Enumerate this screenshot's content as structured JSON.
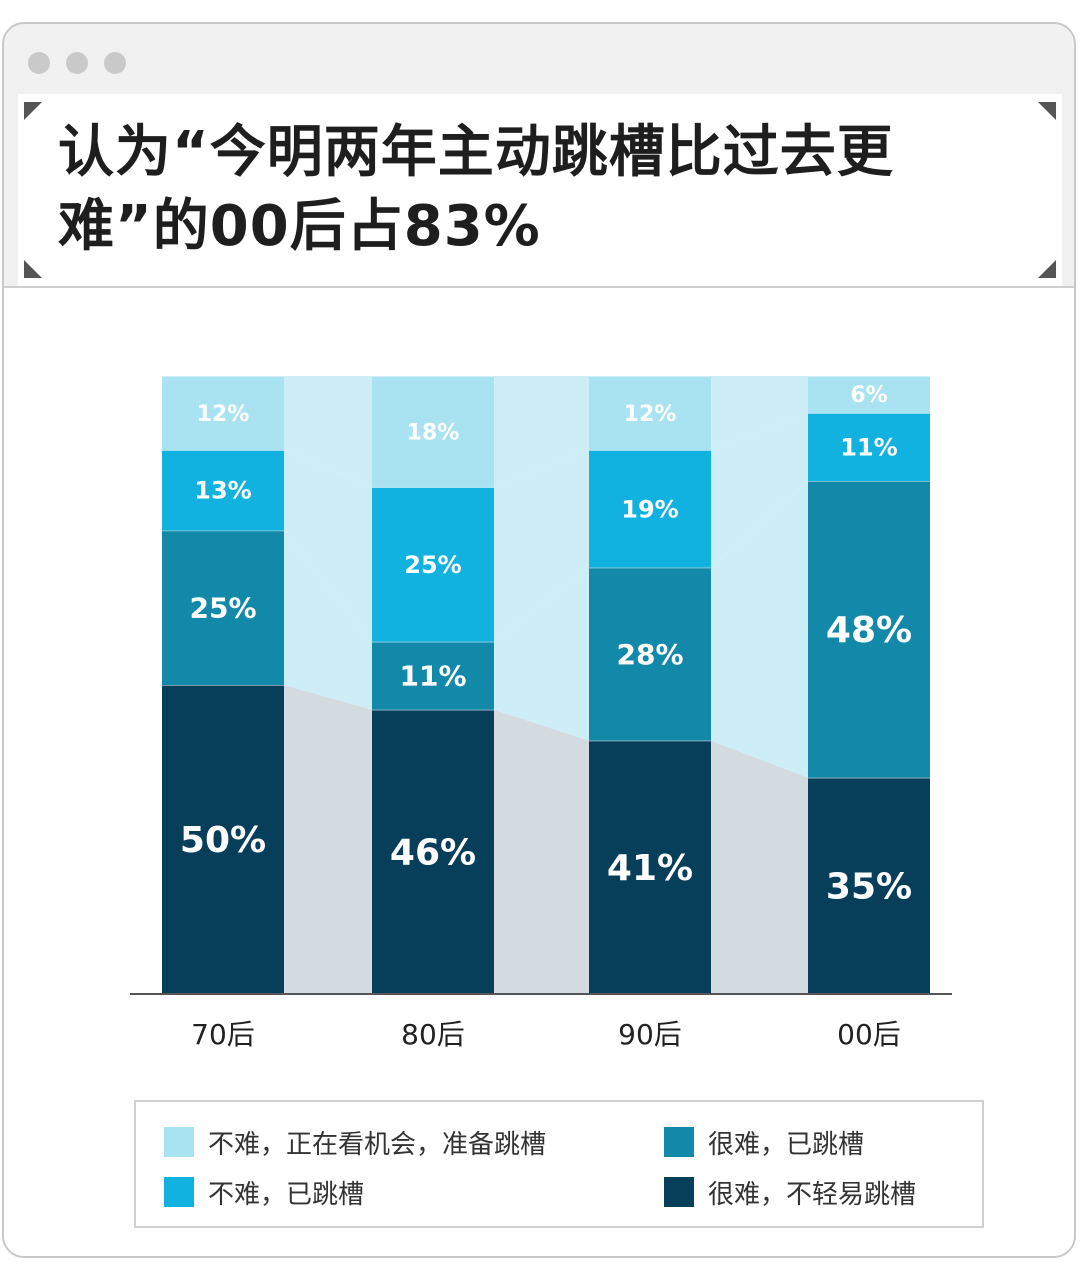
{
  "title": "认为“今明两年主动跳槽比过去更难”的00后占83%",
  "colors": {
    "light": "#a9e2f0",
    "cyan": "#11b2e0",
    "teal": "#1389aa",
    "navy": "#073f5b",
    "band_light": "#cdeef7",
    "band_gray": "#d3dbe0"
  },
  "chart_data": {
    "type": "bar",
    "stacked": true,
    "categories": [
      "70后",
      "80后",
      "90后",
      "00后"
    ],
    "series": [
      {
        "name": "很难，不轻易跳槽",
        "color": "#073f5b",
        "values": [
          50,
          46,
          41,
          35
        ],
        "labels": [
          "50%",
          "46%",
          "41%",
          "35%"
        ]
      },
      {
        "name": "很难，已跳槽",
        "color": "#1389aa",
        "values": [
          25,
          11,
          28,
          48
        ],
        "labels": [
          "25%",
          "11%",
          "28%",
          "48%"
        ]
      },
      {
        "name": "不难，已跳槽",
        "color": "#11b2e0",
        "values": [
          13,
          25,
          19,
          11
        ],
        "labels": [
          "13%",
          "25%",
          "19%",
          "11%"
        ]
      },
      {
        "name": "不难，正在看机会，准备跳槽",
        "color": "#a9e2f0",
        "values": [
          12,
          18,
          12,
          6
        ],
        "labels": [
          "12%",
          "18%",
          "12%",
          "6%"
        ]
      }
    ],
    "ylim": [
      0,
      100
    ],
    "grid": false,
    "legend_position": "bottom"
  },
  "legend": [
    {
      "label": "不难，正在看机会，准备跳槽",
      "color": "#a9e2f0"
    },
    {
      "label": "很难，已跳槽",
      "color": "#1389aa"
    },
    {
      "label": "不难，已跳槽",
      "color": "#11b2e0"
    },
    {
      "label": "很难，不轻易跳槽",
      "color": "#073f5b"
    }
  ]
}
